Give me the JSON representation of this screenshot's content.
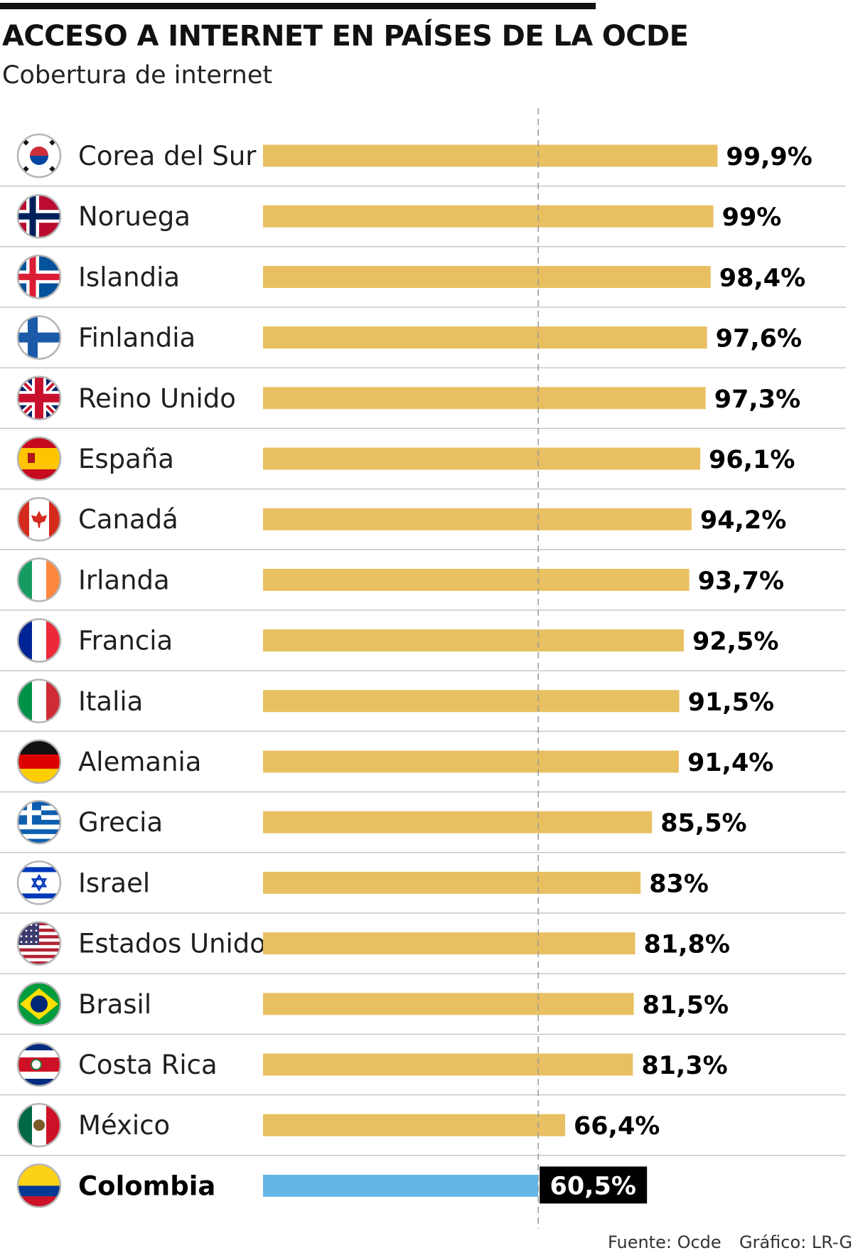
{
  "chart_data": {
    "type": "bar",
    "orientation": "horizontal",
    "title": "ACCESO A INTERNET EN PAÍSES DE LA OCDE",
    "subtitle": "Cobertura de internet",
    "categories": [
      "Corea del Sur",
      "Noruega",
      "Islandia",
      "Finlandia",
      "Reino Unido",
      "España",
      "Canadá",
      "Irlanda",
      "Francia",
      "Italia",
      "Alemania",
      "Grecia",
      "Israel",
      "Estados Unidos",
      "Brasil",
      "Costa Rica",
      "México",
      "Colombia"
    ],
    "values": [
      99.9,
      99,
      98.4,
      97.6,
      97.3,
      96.1,
      94.2,
      93.7,
      92.5,
      91.5,
      91.4,
      85.5,
      83,
      81.8,
      81.5,
      81.3,
      66.4,
      60.5
    ],
    "labels": [
      "99,9%",
      "99%",
      "98,4%",
      "97,6%",
      "97,3%",
      "96,1%",
      "94,2%",
      "93,7%",
      "92,5%",
      "91,5%",
      "91,4%",
      "85,5%",
      "83%",
      "81,8%",
      "81,5%",
      "81,3%",
      "66,4%",
      "60,5%"
    ],
    "highlight": "Colombia",
    "reference_line_value": 60.5,
    "xlim": [
      0,
      100
    ],
    "unit": "%",
    "bar_color": "#e8c062",
    "highlight_color": "#63b6e6"
  },
  "flags": [
    "south-korea",
    "norway",
    "iceland",
    "finland",
    "united-kingdom",
    "spain",
    "canada",
    "ireland",
    "france",
    "italy",
    "germany",
    "greece",
    "israel",
    "united-states",
    "brazil",
    "costa-rica",
    "mexico",
    "colombia"
  ],
  "footer": {
    "source": "Fuente: Ocde",
    "credit": "Gráfico: LR-GR"
  }
}
